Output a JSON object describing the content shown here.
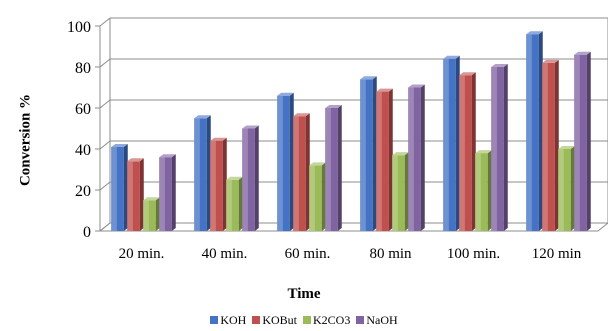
{
  "chart_data": {
    "type": "bar",
    "categories": [
      "20 min.",
      "40 min.",
      "60 min.",
      "80 min",
      "100 min.",
      "120 min"
    ],
    "series": [
      {
        "name": "KOH",
        "color": "#4472c4",
        "values": [
          41,
          55,
          66,
          74,
          84,
          96
        ]
      },
      {
        "name": "KOBut",
        "color": "#c0504d",
        "values": [
          34,
          44,
          56,
          68,
          76,
          82
        ]
      },
      {
        "name": "K2CO3",
        "color": "#9bbb59",
        "values": [
          15,
          25,
          32,
          37,
          38,
          40
        ]
      },
      {
        "name": "NaOH",
        "color": "#8064a2",
        "values": [
          36,
          50,
          60,
          70,
          80,
          86
        ]
      }
    ],
    "xlabel": "Time",
    "ylabel": "Conversion %",
    "ylim": [
      0,
      100
    ],
    "yticks": [
      "0",
      "20",
      "40",
      "60",
      "80",
      "100"
    ],
    "grid": true,
    "legend": "bottom"
  }
}
